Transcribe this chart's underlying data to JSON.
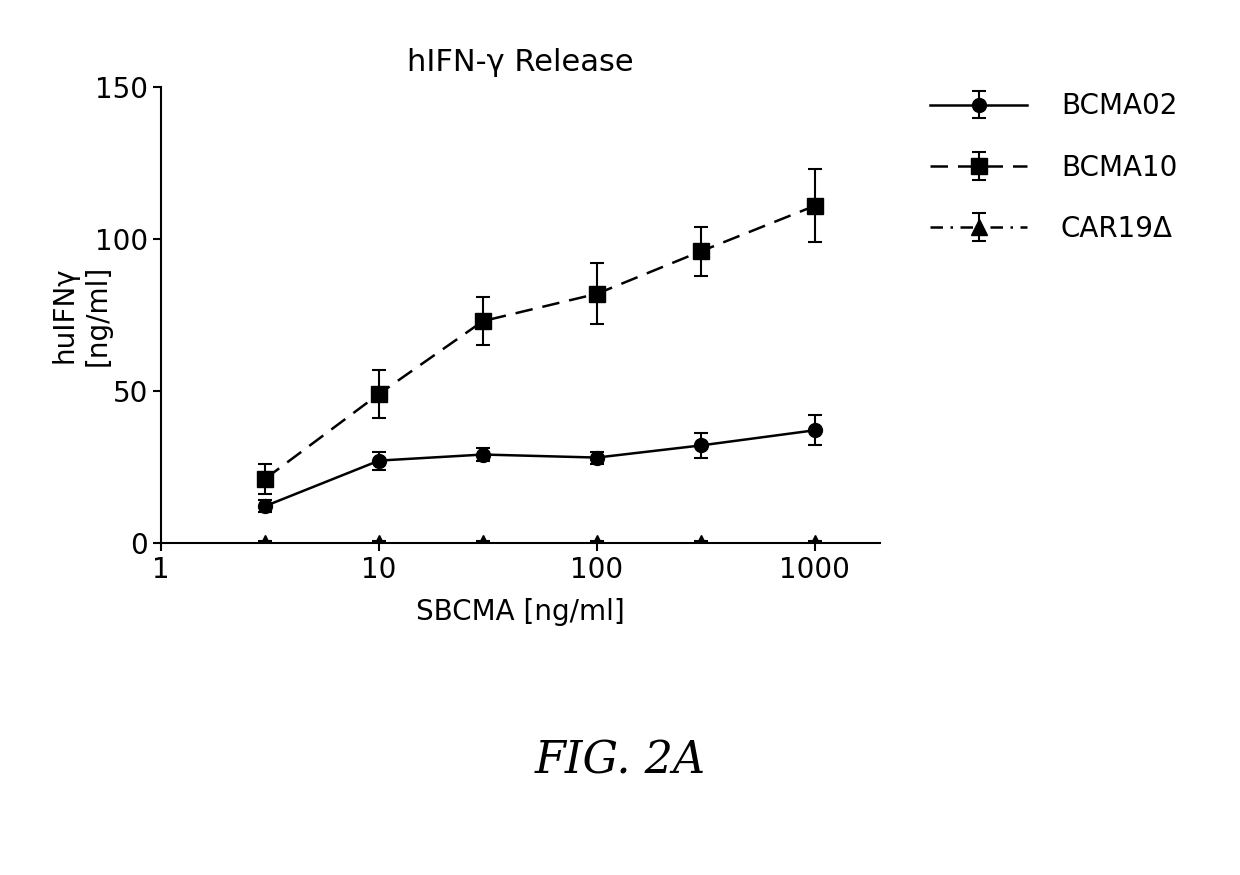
{
  "title": "hIFN-γ Release",
  "xlabel": "SBCMA [ng/ml]",
  "ylabel": "huIFNγ\n[ng/ml]",
  "fig_label": "FIG. 2A",
  "x": [
    3,
    10,
    30,
    100,
    300,
    1000
  ],
  "bcma02_y": [
    12,
    27,
    29,
    28,
    32,
    37
  ],
  "bcma02_err": [
    2,
    3,
    2,
    2,
    4,
    5
  ],
  "bcma10_y": [
    21,
    49,
    73,
    82,
    96,
    111
  ],
  "bcma10_err": [
    5,
    8,
    8,
    10,
    8,
    12
  ],
  "car19_y": [
    0,
    0,
    0,
    0,
    0,
    0
  ],
  "car19_err": [
    0.5,
    0.5,
    0.5,
    0.5,
    0.5,
    0.5
  ],
  "ylim": [
    0,
    150
  ],
  "yticks": [
    0,
    50,
    100,
    150
  ],
  "bg_color": "#ffffff"
}
